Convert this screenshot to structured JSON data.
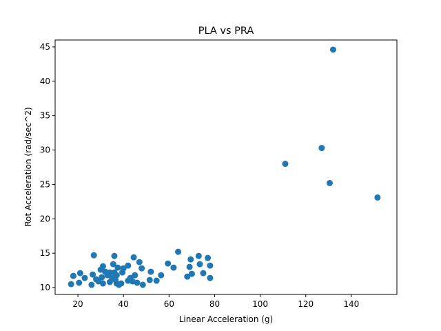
{
  "chart_data": {
    "type": "scatter",
    "title": "PLA vs PRA",
    "xlabel": "Linear Acceleration (g)",
    "ylabel": "Rot Acceleration (rad/sec^2)",
    "xlim": [
      10,
      160
    ],
    "ylim": [
      9,
      46
    ],
    "xticks": [
      20,
      40,
      60,
      80,
      100,
      120,
      140
    ],
    "yticks": [
      10,
      15,
      20,
      25,
      30,
      35,
      40,
      45
    ],
    "grid": false,
    "marker_color": "#1f77b4",
    "points": [
      {
        "x": 17,
        "y": 10.5
      },
      {
        "x": 18,
        "y": 11.7
      },
      {
        "x": 20.5,
        "y": 10.7
      },
      {
        "x": 21,
        "y": 12.1
      },
      {
        "x": 23,
        "y": 11.4
      },
      {
        "x": 26,
        "y": 10.4
      },
      {
        "x": 26.5,
        "y": 11.9
      },
      {
        "x": 27,
        "y": 14.7
      },
      {
        "x": 28,
        "y": 11.2
      },
      {
        "x": 29,
        "y": 10.9
      },
      {
        "x": 30,
        "y": 12.6
      },
      {
        "x": 30.5,
        "y": 11.5
      },
      {
        "x": 31,
        "y": 13.1
      },
      {
        "x": 31,
        "y": 10.6
      },
      {
        "x": 32,
        "y": 12.3
      },
      {
        "x": 33,
        "y": 11.8
      },
      {
        "x": 34,
        "y": 10.8
      },
      {
        "x": 34,
        "y": 12.2
      },
      {
        "x": 35,
        "y": 11.4
      },
      {
        "x": 35.5,
        "y": 13.4
      },
      {
        "x": 36,
        "y": 14.6
      },
      {
        "x": 36,
        "y": 12.2
      },
      {
        "x": 36.5,
        "y": 11.1
      },
      {
        "x": 37,
        "y": 10.6
      },
      {
        "x": 37,
        "y": 11.8
      },
      {
        "x": 37.5,
        "y": 12.9
      },
      {
        "x": 38,
        "y": 10.4
      },
      {
        "x": 39,
        "y": 10.6
      },
      {
        "x": 39.5,
        "y": 12.2
      },
      {
        "x": 40,
        "y": 12.8
      },
      {
        "x": 42,
        "y": 13.2
      },
      {
        "x": 42,
        "y": 11.0
      },
      {
        "x": 43,
        "y": 11.4
      },
      {
        "x": 44,
        "y": 10.9
      },
      {
        "x": 44.5,
        "y": 14.4
      },
      {
        "x": 45,
        "y": 11.8
      },
      {
        "x": 46,
        "y": 10.7
      },
      {
        "x": 47,
        "y": 13.7
      },
      {
        "x": 48,
        "y": 12.8
      },
      {
        "x": 48.5,
        "y": 10.4
      },
      {
        "x": 51.5,
        "y": 11.1
      },
      {
        "x": 52,
        "y": 12.3
      },
      {
        "x": 54.5,
        "y": 11.0
      },
      {
        "x": 56.5,
        "y": 11.8
      },
      {
        "x": 59.5,
        "y": 13.5
      },
      {
        "x": 62,
        "y": 12.9
      },
      {
        "x": 64,
        "y": 15.2
      },
      {
        "x": 68,
        "y": 11.6
      },
      {
        "x": 69,
        "y": 13.0
      },
      {
        "x": 69.5,
        "y": 14.1
      },
      {
        "x": 70,
        "y": 12.0
      },
      {
        "x": 73,
        "y": 14.6
      },
      {
        "x": 73.5,
        "y": 13.4
      },
      {
        "x": 75,
        "y": 12.1
      },
      {
        "x": 77,
        "y": 14.3
      },
      {
        "x": 78,
        "y": 11.4
      },
      {
        "x": 78,
        "y": 13.2
      },
      {
        "x": 111,
        "y": 28.0
      },
      {
        "x": 127,
        "y": 30.3
      },
      {
        "x": 130.5,
        "y": 25.2
      },
      {
        "x": 132,
        "y": 44.6
      },
      {
        "x": 151.5,
        "y": 23.1
      }
    ]
  }
}
